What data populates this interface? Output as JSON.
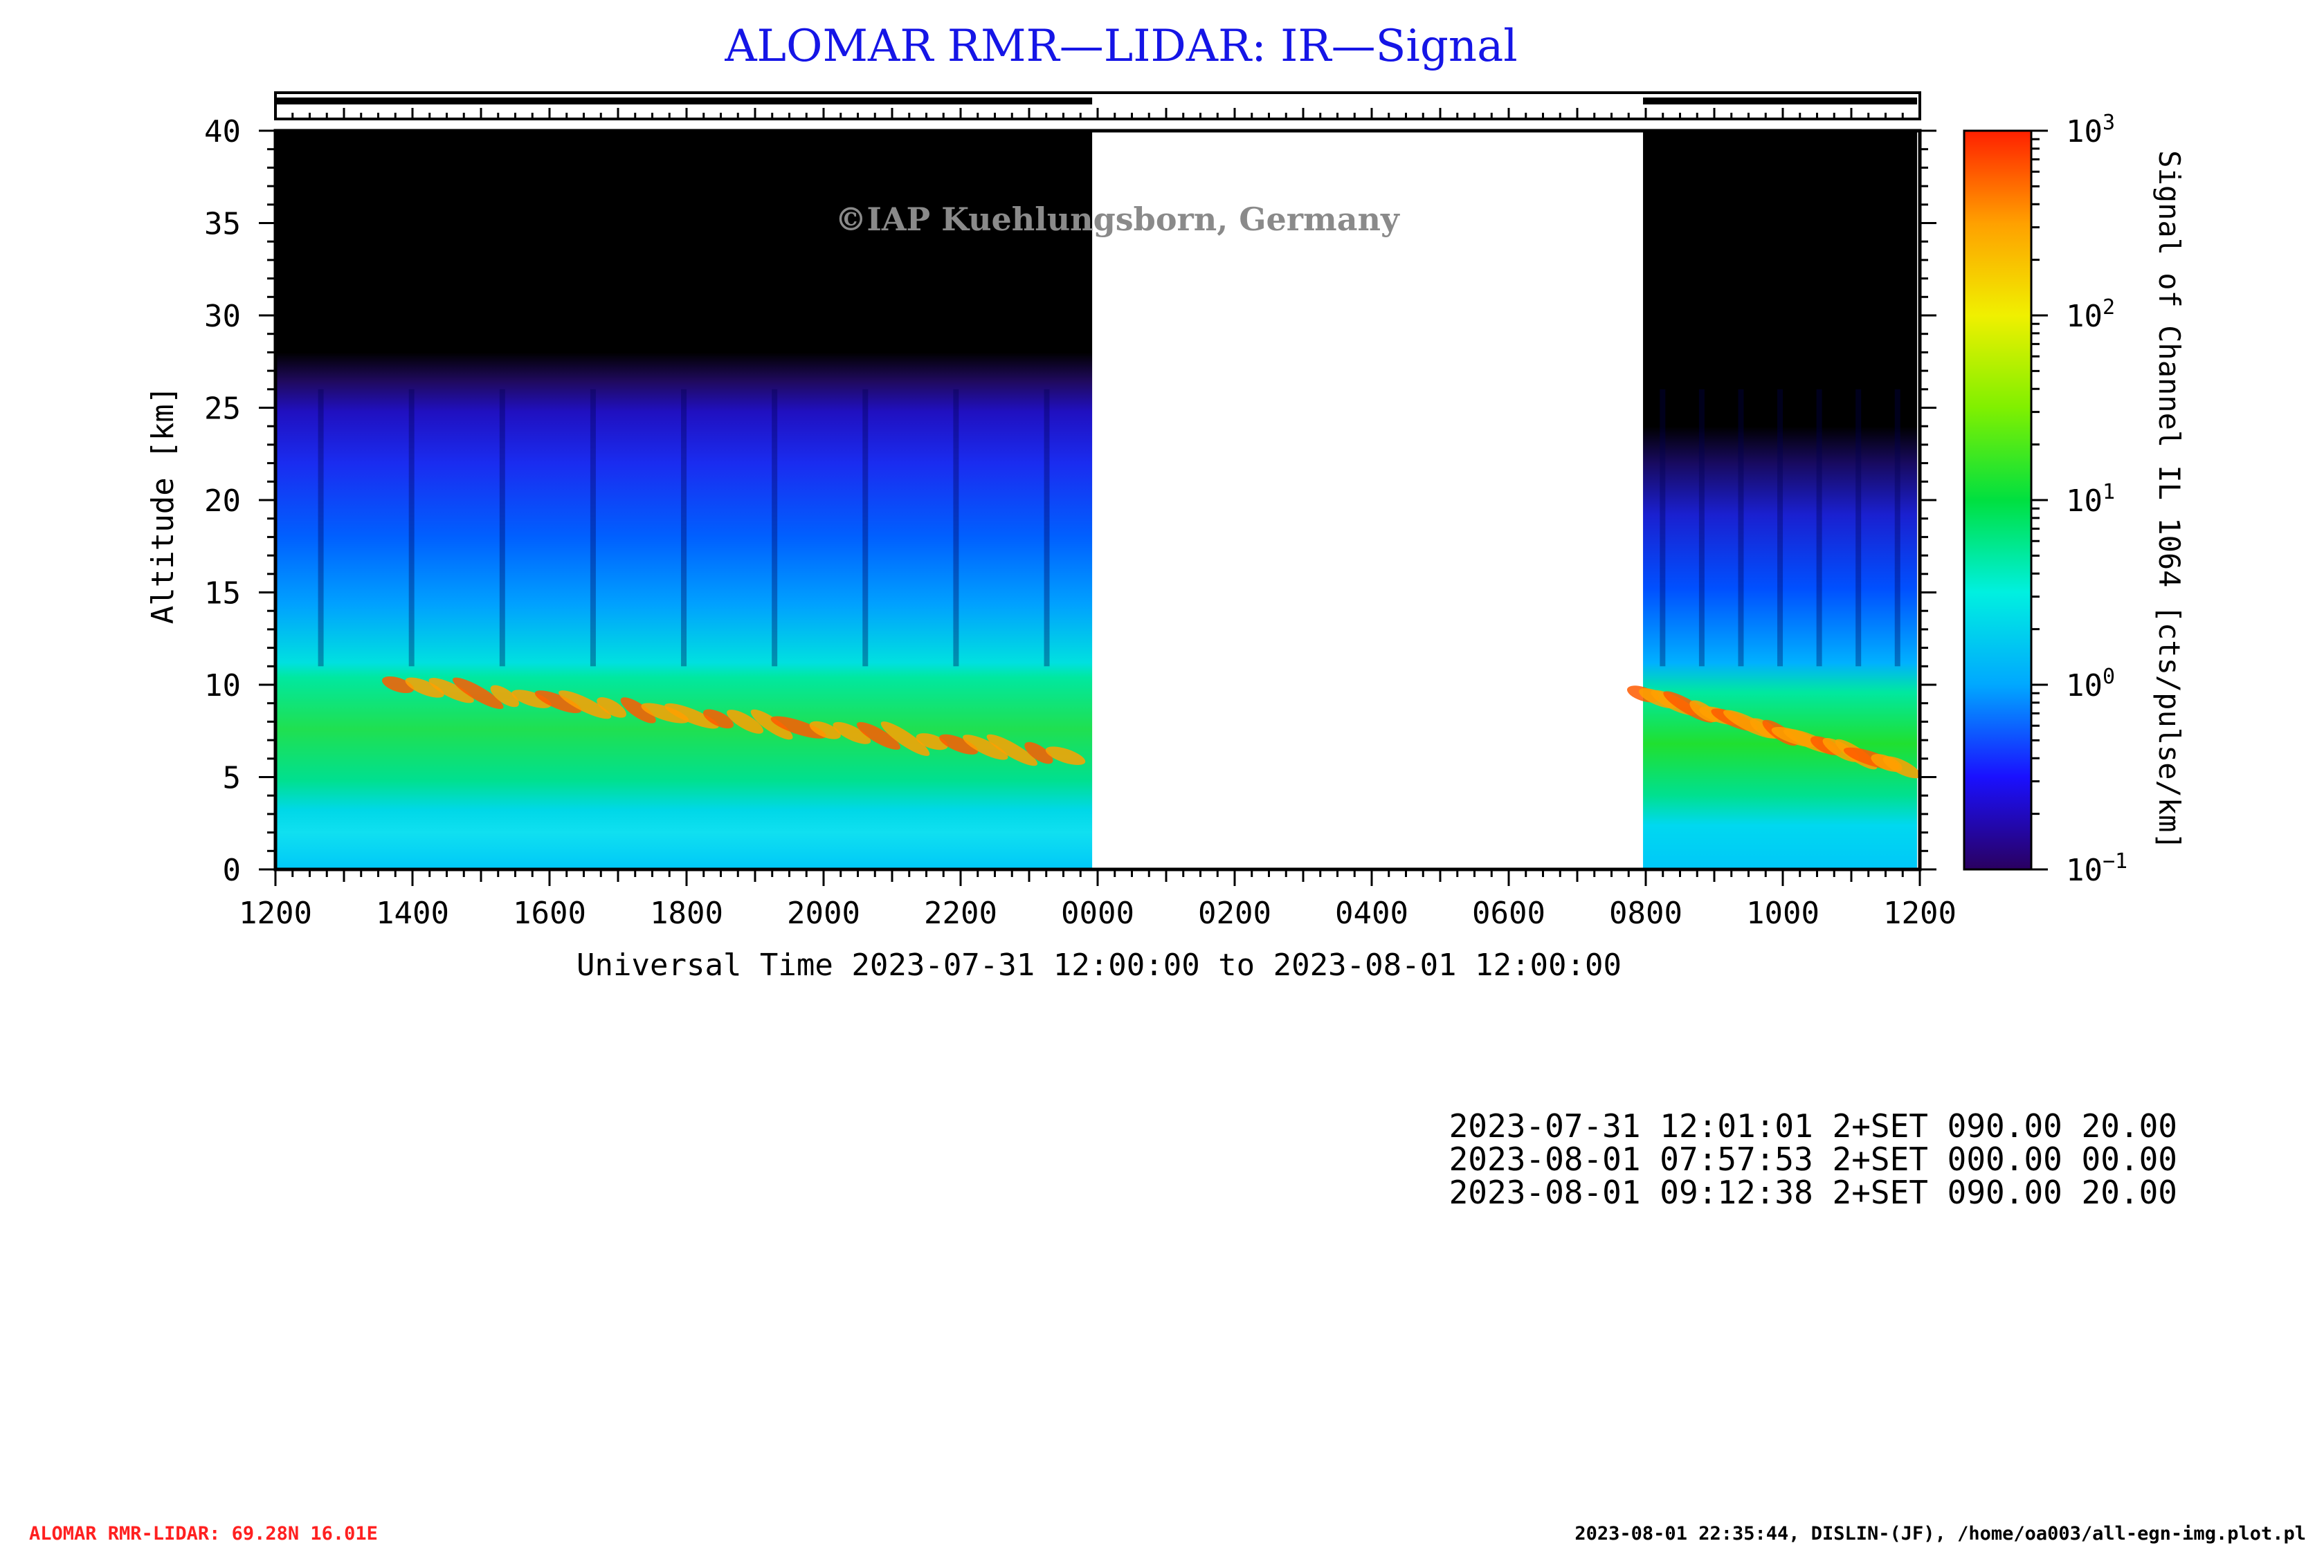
{
  "chart_data": {
    "type": "heatmap",
    "title": "ALOMAR RMR—LIDAR: IR—Signal",
    "watermark": "©IAP Kuehlungsborn, Germany",
    "xlabel": "Universal Time 2023-07-31 12:00:00 to 2023-08-01 12:00:00",
    "ylabel": "Altitude [km]",
    "colorbar_label": "Signal of Channel IL 1064 [cts/pulse/km]",
    "x_tick_labels": [
      "1200",
      "1400",
      "1600",
      "1800",
      "2000",
      "2200",
      "0000",
      "0200",
      "0400",
      "0600",
      "0800",
      "1000",
      "1200"
    ],
    "x_range_hours": [
      0,
      24
    ],
    "y_tick_labels": [
      "0",
      "5",
      "10",
      "15",
      "20",
      "25",
      "30",
      "35",
      "40"
    ],
    "ylim": [
      0,
      40
    ],
    "colorbar": {
      "scale": "log",
      "range": [
        0.1,
        1000
      ],
      "ticks": [
        {
          "base": "10",
          "exp": "3"
        },
        {
          "base": "10",
          "exp": "2"
        },
        {
          "base": "10",
          "exp": "1"
        },
        {
          "base": "10",
          "exp": "0"
        },
        {
          "base": "10",
          "exp": "−1"
        }
      ],
      "colors": [
        "#2a0060",
        "#1a10ff",
        "#00a8ff",
        "#00f0e0",
        "#00e040",
        "#80f000",
        "#f0f000",
        "#ffa000",
        "#ff2000"
      ]
    },
    "measurement_periods_hours": [
      [
        0,
        11.92
      ],
      [
        19.96,
        23.96
      ]
    ],
    "cloud_layer_altitude_km": [
      5,
      11
    ],
    "background_signal_top_km": 25
  },
  "log": {
    "lines": [
      "2023-07-31 12:01:01 2+SET 090.00 20.00",
      "2023-08-01 07:57:53 2+SET 000.00 00.00",
      "2023-08-01 09:12:38 2+SET 090.00 20.00"
    ]
  },
  "footer": {
    "left": "ALOMAR RMR-LIDAR: 69.28N 16.01E",
    "right": "2023-08-01 22:35:44, DISLIN-(JF), /home/oa003/all-egn-img.plot.pl"
  }
}
